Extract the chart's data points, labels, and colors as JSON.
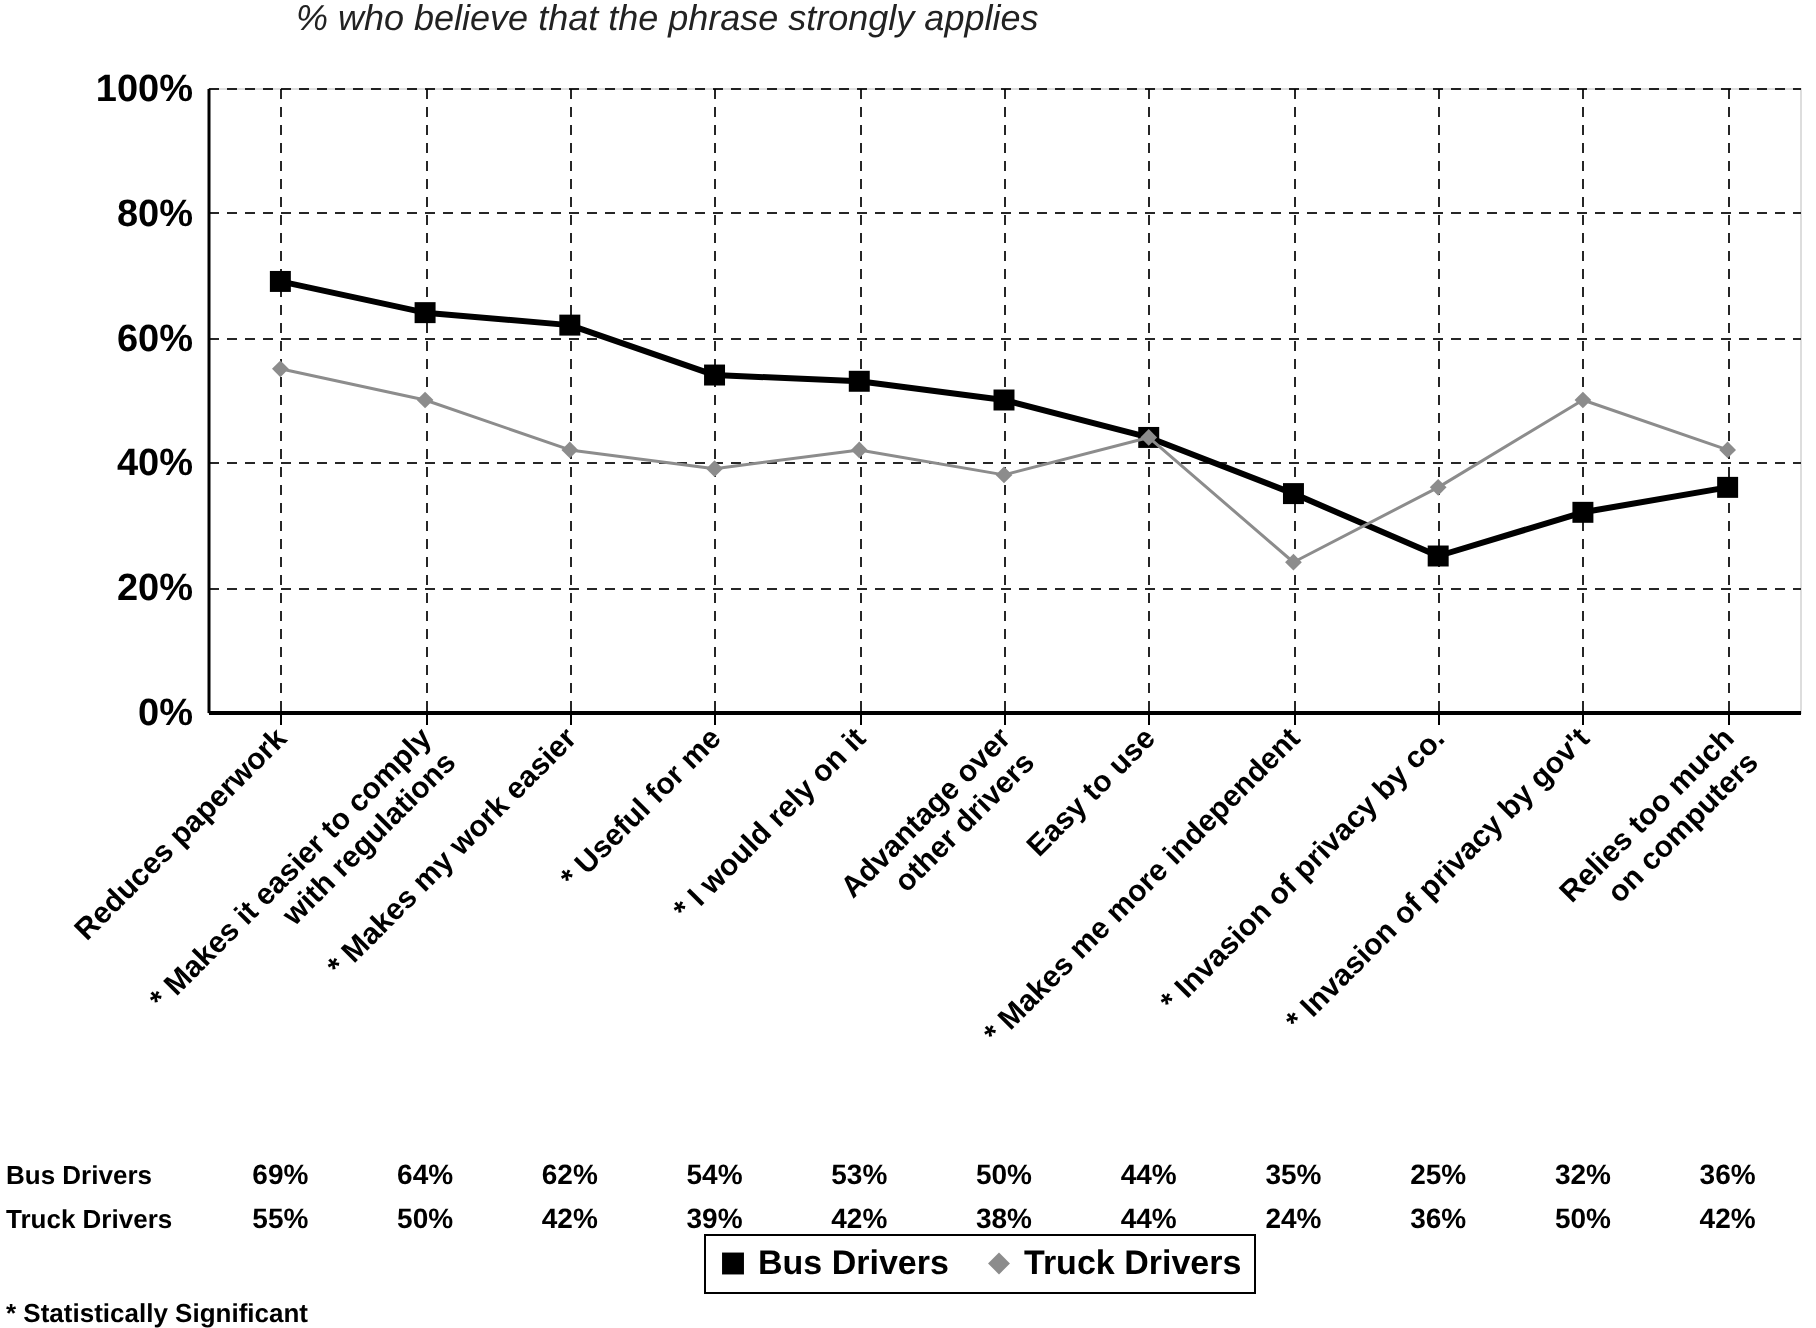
{
  "chart_data": {
    "type": "line",
    "title": "% who believe that the phrase strongly applies",
    "categories": [
      "Reduces paperwork",
      "* Makes it easier to comply\nwith regulations",
      "* Makes my work easier",
      "* Useful for me",
      "* I would rely on it",
      "Advantage over\nother drivers",
      "Easy to use",
      "* Makes me more independent",
      "* Invasion of privacy by co.",
      "* Invasion of privacy by gov't",
      "Relies too much\non computers"
    ],
    "series": [
      {
        "name": "Bus Drivers",
        "color": "#000000",
        "marker": "square",
        "values": [
          69,
          64,
          62,
          54,
          53,
          50,
          44,
          35,
          25,
          32,
          36
        ],
        "value_labels": [
          "69%",
          "64%",
          "62%",
          "54%",
          "53%",
          "50%",
          "44%",
          "35%",
          "25%",
          "32%",
          "36%"
        ]
      },
      {
        "name": "Truck Drivers",
        "color": "#8c8c8c",
        "marker": "diamond",
        "values": [
          55,
          50,
          42,
          39,
          42,
          38,
          44,
          24,
          36,
          50,
          42
        ],
        "value_labels": [
          "55%",
          "50%",
          "42%",
          "39%",
          "42%",
          "38%",
          "44%",
          "24%",
          "36%",
          "50%",
          "42%"
        ]
      }
    ],
    "ylim": [
      0,
      100
    ],
    "yticks": [
      {
        "value": 0,
        "label": "0%"
      },
      {
        "value": 20,
        "label": "20%"
      },
      {
        "value": 40,
        "label": "40%"
      },
      {
        "value": 60,
        "label": "60%"
      },
      {
        "value": 80,
        "label": "80%"
      },
      {
        "value": 100,
        "label": "100%"
      }
    ],
    "grid": true,
    "legend": "bottom",
    "annotations": [
      "* Statistically Significant"
    ]
  }
}
